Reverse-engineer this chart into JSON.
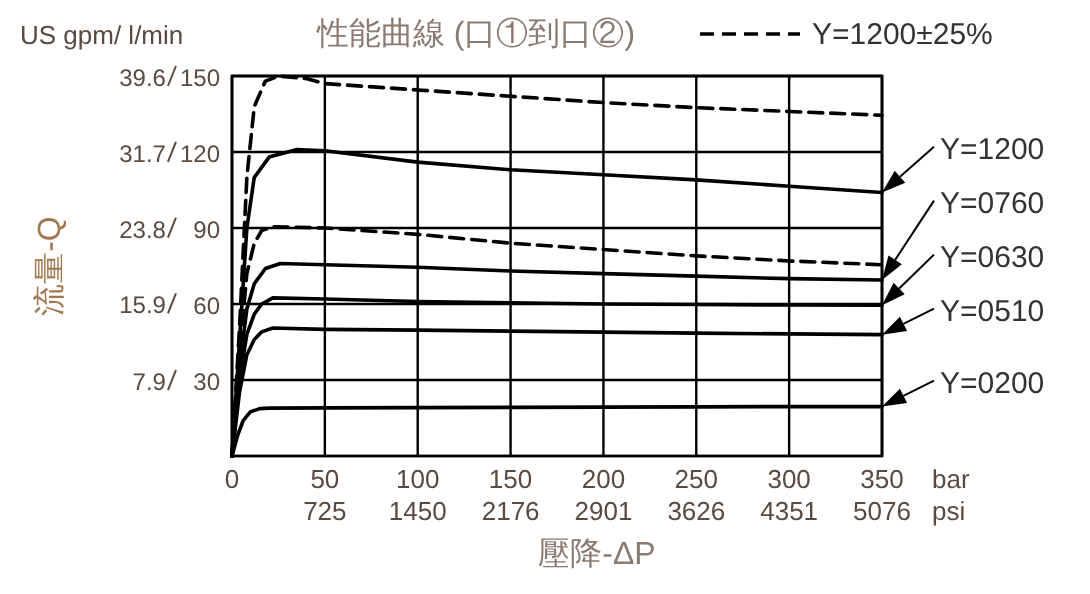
{
  "chart_data": {
    "type": "line",
    "title": "性能曲線 (口①到口②)",
    "xlabel": "壓降-ΔP",
    "ylabel": "流量-Q",
    "annotations": [
      "US gpm/ l/min",
      "bar",
      "psi"
    ],
    "xlim": [
      0,
      350
    ],
    "xticks": [
      0,
      50,
      100,
      150,
      200,
      250,
      300,
      350
    ],
    "x2lim": [
      0,
      5076
    ],
    "x2ticks": [
      725,
      1450,
      2176,
      2901,
      3626,
      4351,
      5076
    ],
    "ylim": [
      0,
      39.6
    ],
    "yticks": [
      7.9,
      15.9,
      23.8,
      31.7,
      39.6
    ],
    "y2lim": [
      0,
      150
    ],
    "y2ticks": [
      30,
      60,
      90,
      120,
      150
    ],
    "grid": true,
    "legend": "top right",
    "marker": "none",
    "series": [
      {
        "name": "Y=1200±25%",
        "color": "#000000",
        "axis": "y2",
        "line_style": "dashed",
        "x": [
          0,
          4,
          8,
          12,
          18,
          25,
          40,
          50,
          100,
          150,
          200,
          250,
          300,
          350
        ],
        "values": [
          0,
          50,
          110,
          138,
          148,
          150,
          149,
          147,
          144.5,
          142,
          139.5,
          137.5,
          136,
          134.5
        ]
      },
      {
        "color": "#000000",
        "axis": "y2",
        "line_style": "dashed",
        "x": [
          0,
          4,
          8,
          12,
          16,
          22,
          50,
          100,
          150,
          200,
          250,
          300,
          350
        ],
        "values": [
          0,
          40,
          72,
          84,
          89,
          90.5,
          90,
          87.5,
          84,
          81.5,
          79,
          77,
          75.5
        ]
      },
      {
        "name": "Y=1200",
        "color": "#000000",
        "axis": "y2",
        "line_style": "solid",
        "x": [
          0,
          4,
          8,
          12,
          20,
          35,
          50,
          100,
          150,
          200,
          250,
          300,
          350
        ],
        "values": [
          0,
          45,
          90,
          110,
          118,
          121,
          120.5,
          116,
          113,
          111,
          109,
          106.5,
          104
        ]
      },
      {
        "name": "Y=0760",
        "color": "#000000",
        "axis": "y2",
        "line_style": "solid",
        "x": [
          0,
          4,
          8,
          12,
          18,
          26,
          50,
          100,
          150,
          200,
          250,
          300,
          350
        ],
        "values": [
          0,
          35,
          58,
          68,
          74,
          76,
          75.5,
          74.5,
          73,
          72,
          71,
          70,
          69.5
        ]
      },
      {
        "name": "Y=0630",
        "color": "#000000",
        "axis": "y2",
        "line_style": "solid",
        "x": [
          0,
          4,
          8,
          12,
          16,
          22,
          50,
          100,
          150,
          200,
          250,
          300,
          350
        ],
        "values": [
          0,
          30,
          48,
          56,
          60,
          62.4,
          62,
          61,
          60.5,
          60,
          59.8,
          59.6,
          59.5
        ]
      },
      {
        "name": "Y=0510",
        "color": "#000000",
        "axis": "y2",
        "line_style": "solid",
        "x": [
          0,
          4,
          8,
          12,
          16,
          22,
          50,
          100,
          150,
          200,
          250,
          300,
          350
        ],
        "values": [
          0,
          25,
          40,
          46,
          49,
          50.5,
          50,
          49.7,
          49.3,
          48.9,
          48.5,
          48.2,
          47.9
        ]
      },
      {
        "name": "Y=0200",
        "color": "#000000",
        "axis": "y2",
        "line_style": "solid",
        "x": [
          0,
          3,
          6,
          10,
          15,
          20,
          50,
          100,
          150,
          200,
          250,
          300,
          350
        ],
        "values": [
          0,
          8,
          14,
          17.5,
          18.7,
          18.9,
          19,
          19.1,
          19.2,
          19.3,
          19.4,
          19.5,
          19.5
        ]
      }
    ]
  }
}
